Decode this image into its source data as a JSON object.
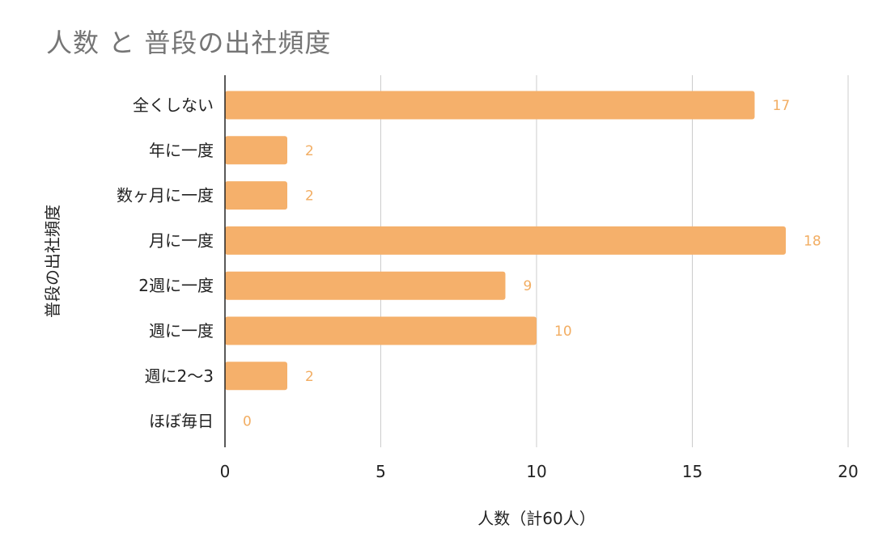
{
  "chart_data": {
    "type": "bar",
    "orientation": "horizontal",
    "title": "人数 と 普段の出社頻度",
    "xlabel": "人数（計60人）",
    "ylabel": "普段の出社頻度",
    "categories": [
      "全くしない",
      "年に一度",
      "数ヶ月に一度",
      "月に一度",
      "2週に一度",
      "週に一度",
      "週に2〜3",
      "ほぼ毎日"
    ],
    "series": [
      {
        "values": [
          17,
          2,
          2,
          18,
          9,
          10,
          2,
          0
        ]
      }
    ],
    "xlim": [
      0,
      20
    ],
    "xticks": [
      0,
      5,
      10,
      15,
      20
    ],
    "grid": true,
    "legend": "none",
    "data_labels": true,
    "colors": {
      "bar": "#f5b06b",
      "data_label": "#f2ad62",
      "grid": "#cccccc",
      "axis": "#222222"
    }
  }
}
